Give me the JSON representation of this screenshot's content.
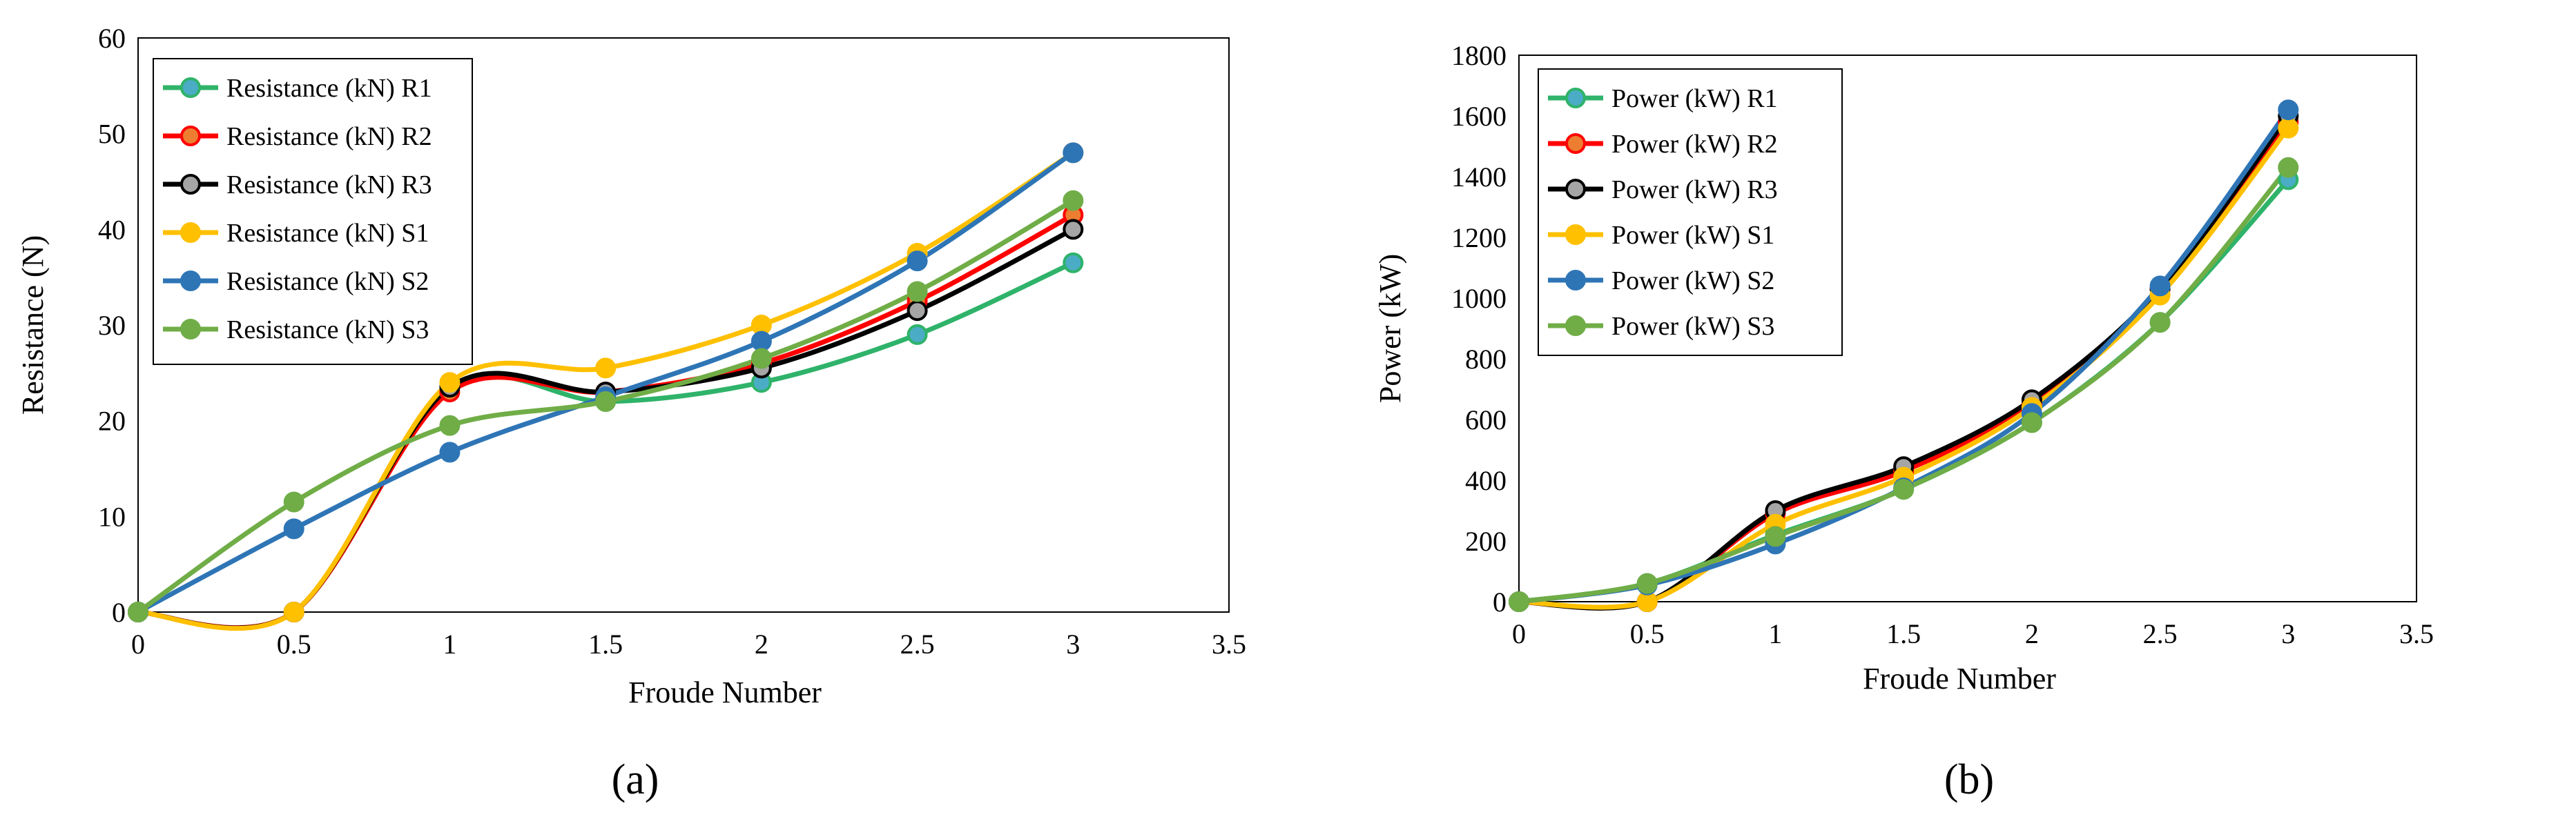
{
  "colors": {
    "R1": "#2fb36a",
    "R1_marker": "#4bacc6",
    "R2": "#ff0000",
    "R2_marker": "#ed7d31",
    "R3": "#000000",
    "R3_marker": "#a5a5a5",
    "S1": "#ffc000",
    "S1_marker": "#ffc000",
    "S2": "#2e75b6",
    "S2_marker": "#2e75b6",
    "S3": "#70ad47",
    "S3_marker": "#70ad47"
  },
  "chart_data": [
    {
      "type": "line",
      "panel_label": "(a)",
      "title": "",
      "xlabel": "Froude Number",
      "ylabel": "Resistance (N)",
      "xlim": [
        0,
        3.5
      ],
      "ylim": [
        0,
        60
      ],
      "xticks": [
        "0",
        "0.5",
        "1",
        "1.5",
        "2",
        "2.5",
        "3",
        "3.5"
      ],
      "yticks": [
        "0",
        "10",
        "20",
        "30",
        "40",
        "50",
        "60"
      ],
      "legend_position": "top-left",
      "x": [
        0,
        0.5,
        1,
        1.5,
        2,
        2.5,
        3
      ],
      "series": [
        {
          "key": "R1",
          "name": "Resistance (kN) R1",
          "values": [
            0,
            0,
            23.5,
            22,
            24,
            29,
            36.5
          ]
        },
        {
          "key": "R2",
          "name": "Resistance (kN) R2",
          "values": [
            0,
            0,
            23,
            23,
            26,
            32.5,
            41.5
          ]
        },
        {
          "key": "R3",
          "name": "Resistance (kN) R3",
          "values": [
            0,
            0,
            23.5,
            23,
            25.5,
            31.5,
            40
          ]
        },
        {
          "key": "S1",
          "name": "Resistance (kN) S1",
          "values": [
            0,
            0,
            24,
            25.5,
            30,
            37.5,
            48
          ]
        },
        {
          "key": "S2",
          "name": "Resistance (kN) S2",
          "values": [
            0,
            8.7,
            16.7,
            22.5,
            28.3,
            36.7,
            48
          ]
        },
        {
          "key": "S3",
          "name": "Resistance (kN) S3",
          "values": [
            0,
            11.5,
            19.5,
            22,
            26.5,
            33.5,
            43
          ]
        }
      ]
    },
    {
      "type": "line",
      "panel_label": "(b)",
      "title": "",
      "xlabel": "Froude Number",
      "ylabel": "Power (kW)",
      "xlim": [
        0,
        3.5
      ],
      "ylim": [
        0,
        1800
      ],
      "xticks": [
        "0",
        "0.5",
        "1",
        "1.5",
        "2",
        "2.5",
        "3",
        "3.5"
      ],
      "yticks": [
        "0",
        "200",
        "400",
        "600",
        "800",
        "1000",
        "1200",
        "1400",
        "1600",
        "1800"
      ],
      "legend_position": "top-left",
      "x": [
        0,
        0.5,
        1,
        1.5,
        2,
        2.5,
        3
      ],
      "series": [
        {
          "key": "R1",
          "name": "Power (kW) R1",
          "values": [
            0,
            60,
            220,
            370,
            590,
            920,
            1390
          ]
        },
        {
          "key": "R2",
          "name": "Power (kW) R2",
          "values": [
            0,
            0,
            290,
            430,
            650,
            1030,
            1580
          ]
        },
        {
          "key": "R3",
          "name": "Power (kW) R3",
          "values": [
            0,
            0,
            300,
            445,
            665,
            1030,
            1600
          ]
        },
        {
          "key": "S1",
          "name": "Power (kW) S1",
          "values": [
            0,
            0,
            255,
            410,
            640,
            1010,
            1560
          ]
        },
        {
          "key": "S2",
          "name": "Power (kW) S2",
          "values": [
            0,
            55,
            190,
            375,
            620,
            1040,
            1620
          ]
        },
        {
          "key": "S3",
          "name": "Power (kW) S3",
          "values": [
            0,
            60,
            215,
            370,
            590,
            920,
            1430
          ]
        }
      ]
    }
  ]
}
